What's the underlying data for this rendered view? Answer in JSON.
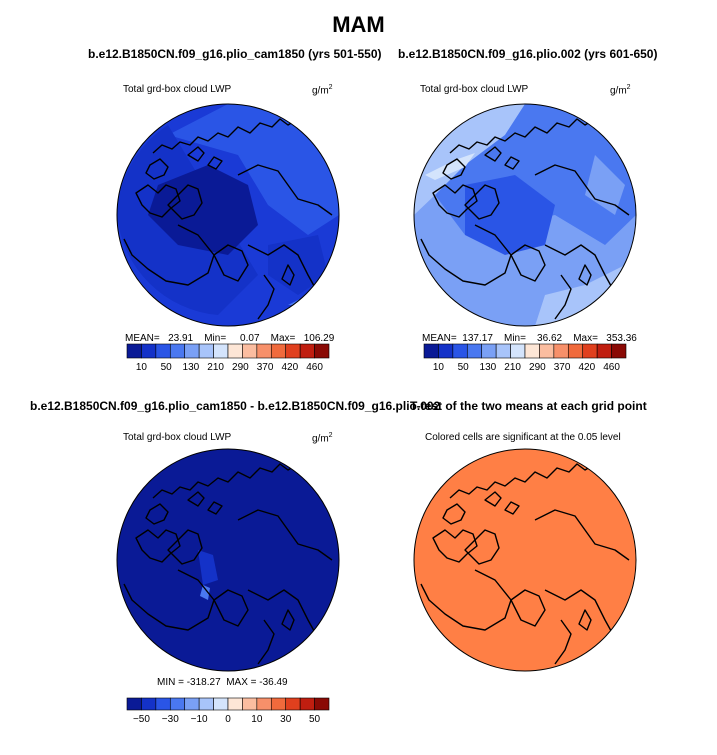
{
  "title": "MAM",
  "panels": [
    {
      "id": "p1",
      "run_title": "b.e12.B1850CN.f09_g16.plio_cam1850 (yrs 501-550)",
      "variable": "Total grd-box cloud LWP",
      "units": "g/m",
      "units_exp": "2",
      "stats": "MEAN=   23.91    Min=     0.07    Max=   106.29"
    },
    {
      "id": "p2",
      "run_title": "b.e12.B1850CN.f09_g16.plio.002 (yrs 601-650)",
      "variable": "Total grd-box cloud LWP",
      "units": "g/m",
      "units_exp": "2",
      "stats": "MEAN=  137.17    Min=    36.62    Max=   353.36"
    },
    {
      "id": "p3",
      "run_title": "b.e12.B1850CN.f09_g16.plio_cam1850 - b.e12.B1850CN.f09_g16.plio.002",
      "variable": "Total grd-box cloud LWP",
      "units": "g/m",
      "units_exp": "2",
      "stats": "MIN = -318.27  MAX = -36.49"
    },
    {
      "id": "p4",
      "run_title": "T-test of the two means at each grid point",
      "variable": "Colored cells are significant at the 0.05 level"
    }
  ],
  "chart_data": [
    {
      "type": "heatmap",
      "projection": "polar-stereographic-north",
      "title": "b.e12.B1850CN.f09_g16.plio_cam1850 (yrs 501-550)",
      "variable": "Total grd-box cloud LWP",
      "units": "g/m2",
      "mean": 23.91,
      "min": 0.07,
      "max": 106.29,
      "colorbar_ticks": [
        "10",
        "50",
        "130",
        "210",
        "290",
        "370",
        "420",
        "460"
      ],
      "colorbar_colors": [
        "#0a1a96",
        "#1432c8",
        "#2a55e6",
        "#4a78f0",
        "#7aa0f5",
        "#a8c4fa",
        "#d4e4fc",
        "#fde6d6",
        "#fbbda0",
        "#f7906a",
        "#f06a3c",
        "#e0401e",
        "#c01e10",
        "#8a0a05"
      ]
    },
    {
      "type": "heatmap",
      "projection": "polar-stereographic-north",
      "title": "b.e12.B1850CN.f09_g16.plio.002 (yrs 601-650)",
      "variable": "Total grd-box cloud LWP",
      "units": "g/m2",
      "mean": 137.17,
      "min": 36.62,
      "max": 353.36,
      "colorbar_ticks": [
        "10",
        "50",
        "130",
        "210",
        "290",
        "370",
        "420",
        "460"
      ],
      "colorbar_colors": [
        "#0a1a96",
        "#1432c8",
        "#2a55e6",
        "#4a78f0",
        "#7aa0f5",
        "#a8c4fa",
        "#d4e4fc",
        "#fde6d6",
        "#fbbda0",
        "#f7906a",
        "#f06a3c",
        "#e0401e",
        "#c01e10",
        "#8a0a05"
      ]
    },
    {
      "type": "heatmap",
      "projection": "polar-stereographic-north",
      "title": "b.e12.B1850CN.f09_g16.plio_cam1850 - b.e12.B1850CN.f09_g16.plio.002",
      "variable": "Total grd-box cloud LWP",
      "units": "g/m2",
      "min": -318.27,
      "max": -36.49,
      "colorbar_ticks": [
        "-50",
        "-30",
        "-10",
        "0",
        "10",
        "30",
        "50"
      ],
      "colorbar_colors": [
        "#0a1a96",
        "#1432c8",
        "#2a55e6",
        "#4a78f0",
        "#7aa0f5",
        "#a8c4fa",
        "#d4e4fc",
        "#fde6d6",
        "#fbbda0",
        "#f7906a",
        "#f06a3c",
        "#e0401e",
        "#c01e10",
        "#8a0a05"
      ]
    },
    {
      "type": "heatmap",
      "projection": "polar-stereographic-north",
      "title": "T-test of the two means at each grid point",
      "variable": "Colored cells are significant at the 0.05 level",
      "significant_color": "#ff7f45"
    }
  ]
}
